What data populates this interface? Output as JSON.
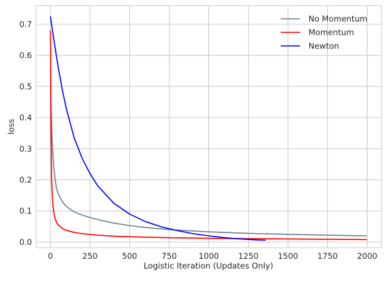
{
  "chart_data": {
    "type": "line",
    "xlabel": "Logistic Iteration (Updates Only)",
    "ylabel": "loss",
    "xlim": [
      -90,
      2090
    ],
    "ylim": [
      -0.018,
      0.76
    ],
    "xticks": [
      0,
      250,
      500,
      750,
      1000,
      1250,
      1500,
      1750,
      2000
    ],
    "yticks": [
      0.0,
      0.1,
      0.2,
      0.3,
      0.4,
      0.5,
      0.6,
      0.7
    ],
    "grid": true,
    "legend_position": "top-right",
    "series": [
      {
        "name": "No Momentum",
        "color": "#708090",
        "x": [
          0,
          2,
          5,
          10,
          15,
          20,
          30,
          40,
          50,
          75,
          100,
          150,
          200,
          250,
          300,
          400,
          500,
          600,
          750,
          1000,
          1250,
          1500,
          1750,
          2000
        ],
        "y": [
          0.56,
          0.49,
          0.42,
          0.34,
          0.29,
          0.25,
          0.2,
          0.17,
          0.155,
          0.13,
          0.115,
          0.097,
          0.087,
          0.079,
          0.072,
          0.061,
          0.053,
          0.047,
          0.04,
          0.033,
          0.028,
          0.025,
          0.022,
          0.02
        ]
      },
      {
        "name": "Momentum",
        "color": "#ff0000",
        "x": [
          0,
          1,
          2,
          3,
          5,
          8,
          12,
          16,
          20,
          25,
          30,
          40,
          50,
          75,
          100,
          150,
          200,
          300,
          400,
          500,
          750,
          1000,
          1250,
          1500,
          1750,
          2000
        ],
        "y": [
          0.68,
          0.6,
          0.5,
          0.4,
          0.3,
          0.2,
          0.15,
          0.12,
          0.1,
          0.085,
          0.075,
          0.062,
          0.055,
          0.044,
          0.038,
          0.031,
          0.027,
          0.022,
          0.019,
          0.017,
          0.014,
          0.012,
          0.011,
          0.01,
          0.009,
          0.008
        ]
      },
      {
        "name": "Newton",
        "color": "#0000ff",
        "x": [
          0,
          25,
          50,
          75,
          100,
          150,
          200,
          250,
          300,
          400,
          500,
          600,
          700,
          800,
          900,
          1000,
          1100,
          1200,
          1300,
          1360
        ],
        "y": [
          0.725,
          0.64,
          0.56,
          0.49,
          0.43,
          0.335,
          0.27,
          0.22,
          0.18,
          0.125,
          0.09,
          0.066,
          0.049,
          0.037,
          0.027,
          0.02,
          0.014,
          0.01,
          0.007,
          0.006
        ]
      }
    ]
  }
}
